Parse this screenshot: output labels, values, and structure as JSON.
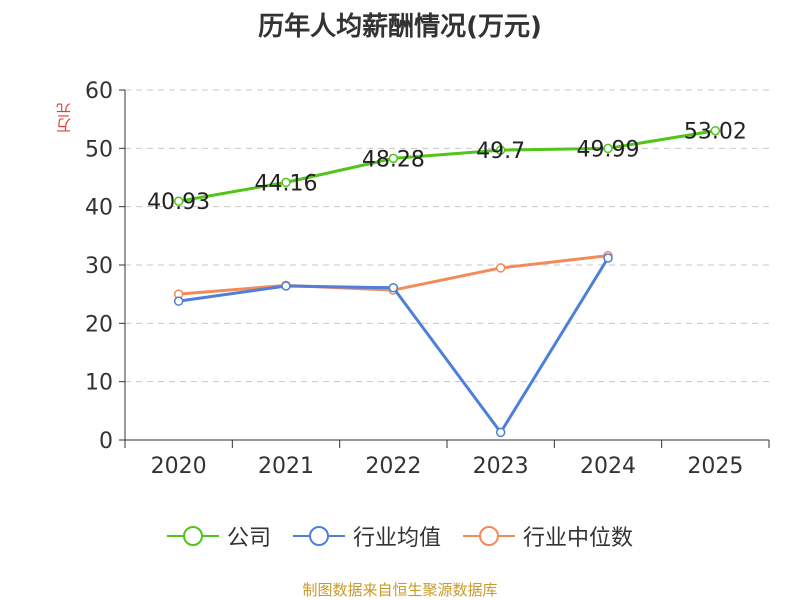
{
  "chart_data": {
    "type": "line",
    "title": "历年人均薪酬情况(万元)",
    "ylabel": "万元",
    "categories": [
      "2020",
      "2021",
      "2022",
      "2023",
      "2024",
      "2025"
    ],
    "ylim": [
      0,
      60
    ],
    "yticks": [
      0,
      10,
      20,
      30,
      40,
      50,
      60
    ],
    "grid": true,
    "legend_position": "bottom",
    "series": [
      {
        "name": "公司",
        "color": "#52c41a",
        "values": [
          40.93,
          44.16,
          48.28,
          49.7,
          49.99,
          53.02
        ],
        "show_labels": true
      },
      {
        "name": "行业均值",
        "color": "#4e7fd9",
        "values": [
          23.8,
          26.4,
          26.1,
          1.3,
          31.2,
          null
        ],
        "show_labels": false
      },
      {
        "name": "行业中位数",
        "color": "#f28b57",
        "values": [
          25.0,
          26.5,
          25.7,
          29.5,
          31.6,
          null
        ],
        "show_labels": false
      }
    ]
  },
  "source_text": "制图数据来自恒生聚源数据库"
}
